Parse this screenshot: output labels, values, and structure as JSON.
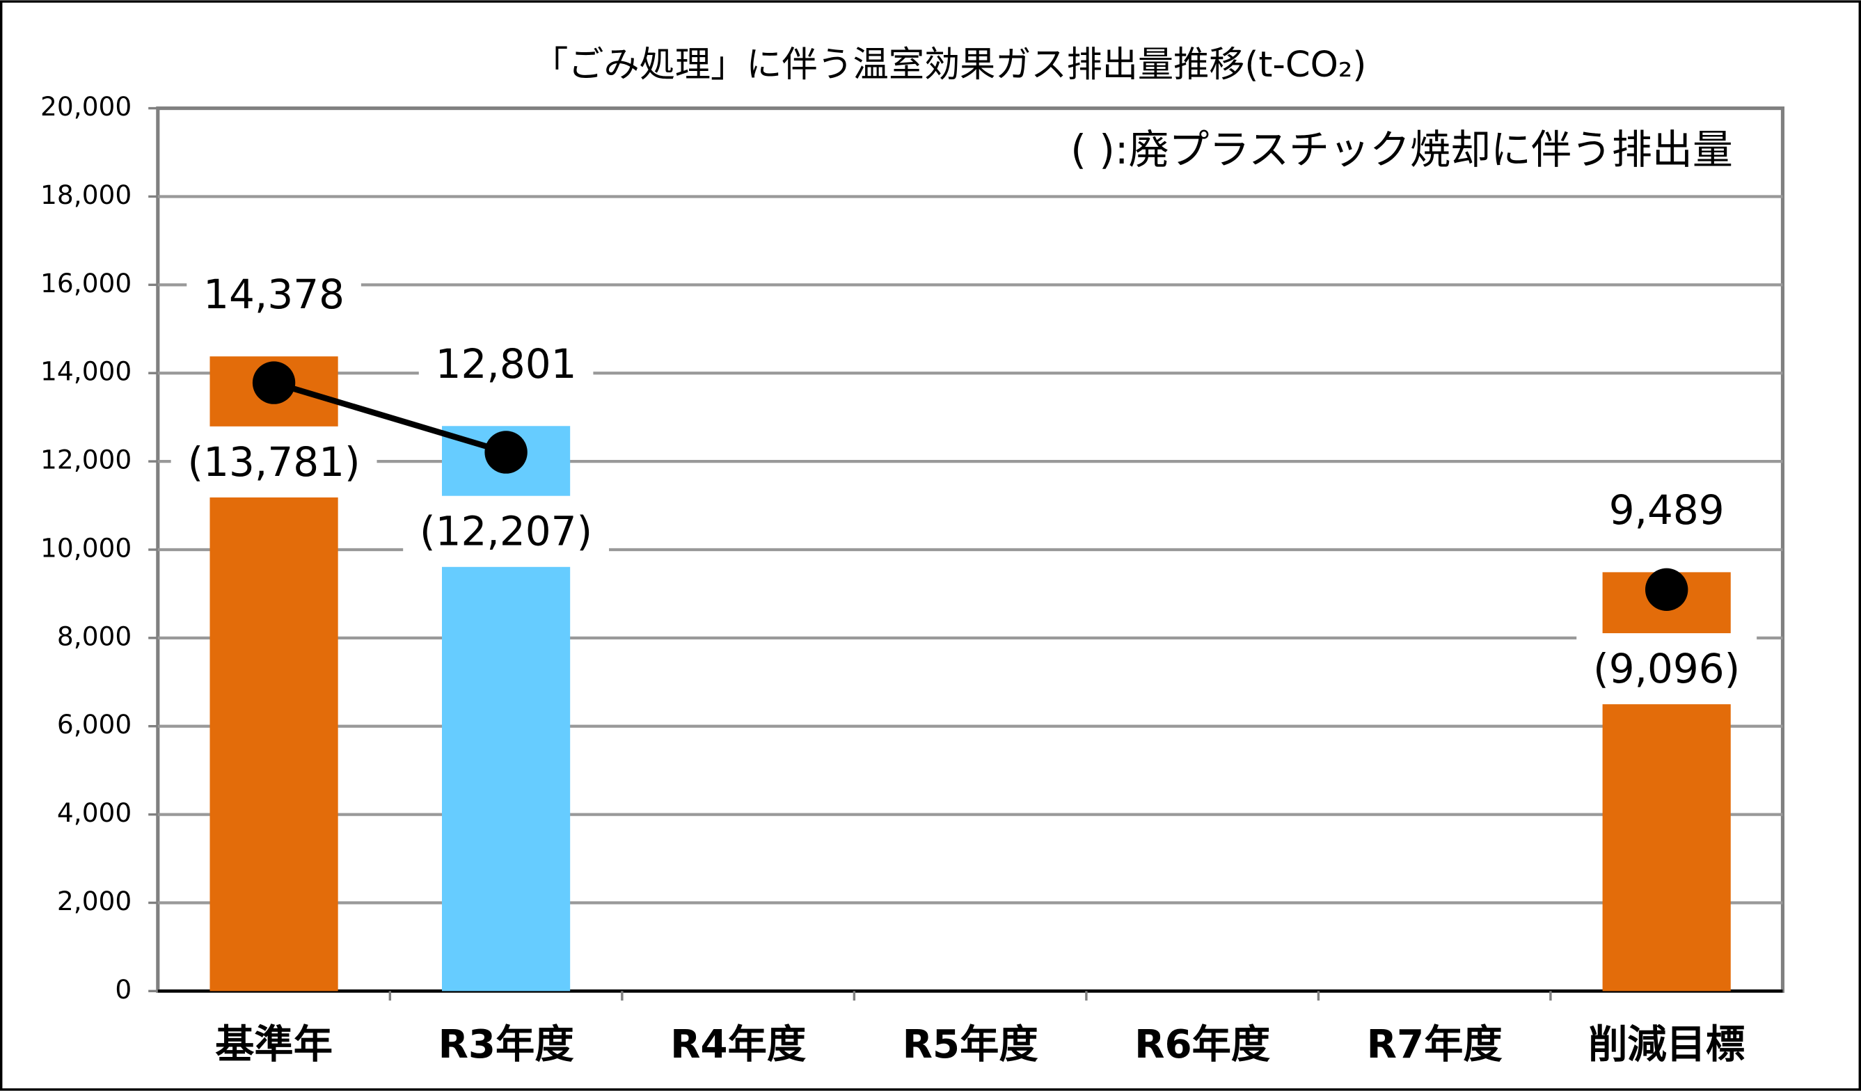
{
  "chart_data": {
    "type": "bar",
    "title": "「ごみ処理」に伴う温室効果ガス排出量推移(t-CO₂)",
    "annotation": "(   ):廃プラスチック焼却に伴う排出量",
    "categories": [
      "基準年",
      "R3年度",
      "R4年度",
      "R5年度",
      "R6年度",
      "R7年度",
      "削減目標"
    ],
    "bars": {
      "values": [
        14378,
        12801,
        null,
        null,
        null,
        null,
        9489
      ],
      "value_labels": [
        "14,378",
        "12,801",
        null,
        null,
        null,
        null,
        "9,489"
      ],
      "colors": [
        "#e36c0a",
        "#66ccff",
        null,
        null,
        null,
        null,
        "#e36c0a"
      ]
    },
    "line": {
      "type": "line",
      "values": [
        13781,
        12207,
        null,
        null,
        null,
        null,
        9096
      ],
      "value_labels": [
        "(13,781)",
        "(12,207)",
        null,
        null,
        null,
        null,
        "(9,096)"
      ],
      "color": "#000000"
    },
    "ylim": [
      0,
      20000
    ],
    "yticks": [
      0,
      {
        "value": 2000,
        "label": "2,000"
      },
      {
        "value": 4000,
        "label": "4,000"
      },
      {
        "value": 6000,
        "label": "6,000"
      },
      {
        "value": 8000,
        "label": "8,000"
      },
      {
        "value": 10000,
        "label": "10,000"
      },
      {
        "value": 12000,
        "label": "12,000"
      },
      {
        "value": 14000,
        "label": "14,000"
      },
      {
        "value": 16000,
        "label": "16,000"
      },
      {
        "value": 18000,
        "label": "18,000"
      },
      {
        "value": 20000,
        "label": "20,000"
      }
    ],
    "grid": true
  }
}
